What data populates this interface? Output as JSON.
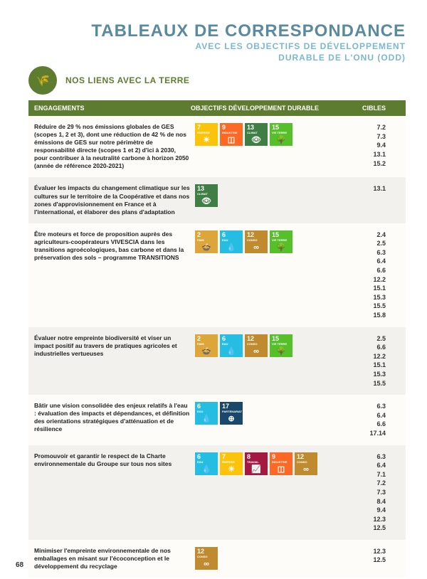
{
  "header": {
    "title": "TABLEAUX DE CORRESPONDANCE",
    "subtitle_l1": "AVEC LES OBJECTIFS DE DÉVELOPPEMENT",
    "subtitle_l2": "DURABLE DE L'ONU (ODD)"
  },
  "section": {
    "title": "NOS LIENS AVEC LA TERRE",
    "badge_glyph": "🌾"
  },
  "columns": {
    "c1": "ENGAGEMENTS",
    "c2": "OBJECTIFS DÉVELOPPEMENT DURABLE",
    "c3": "CIBLES"
  },
  "sdg_palette": {
    "2": {
      "color": "#dda63a",
      "label": "FAIM",
      "icon": "🍲"
    },
    "6": {
      "color": "#26bde2",
      "label": "EAU",
      "icon": "💧"
    },
    "7": {
      "color": "#fcc30b",
      "label": "ÉNERGIE",
      "icon": "☀"
    },
    "8": {
      "color": "#a21942",
      "label": "TRAVAIL",
      "icon": "📈"
    },
    "9": {
      "color": "#fd6925",
      "label": "INDUSTRIE",
      "icon": "◫"
    },
    "12": {
      "color": "#bf8b2e",
      "label": "CONSO",
      "icon": "∞"
    },
    "13": {
      "color": "#3f7e44",
      "label": "CLIMAT",
      "icon": "👁"
    },
    "15": {
      "color": "#56c02b",
      "label": "VIE TERRE",
      "icon": "🌳"
    },
    "17": {
      "color": "#19486a",
      "label": "PARTENARIAT",
      "icon": "⊕"
    }
  },
  "rows": [
    {
      "engagement": "Réduire de 29 % nos émissions globales de GES (scopes 1, 2 et 3), dont une réduction de 42 % de nos émissions de GES sur notre périmètre de responsabilité directe (scopes 1 et 2) d'ici à 2030, pour contribuer à la neutralité carbone à horizon 2050 (année de référence 2020-2021)",
      "sdgs": [
        7,
        9,
        13,
        15
      ],
      "cibles": [
        "7.2",
        "7.3",
        "9.4",
        "13.1",
        "15.2"
      ]
    },
    {
      "engagement": "Évaluer les impacts du changement climatique sur les cultures sur le territoire de la Coopérative et dans nos zones d'approvisionnement en France et à l'international, et élaborer des plans d'adaptation",
      "sdgs": [
        13
      ],
      "cibles": [
        "13.1"
      ]
    },
    {
      "engagement": "Être moteurs et force de proposition auprès des agriculteurs-coopérateurs VIVESCIA dans les transitions agroécologiques, bas carbone et dans la préservation des sols – programme TRANSITIONS",
      "sdgs": [
        2,
        6,
        12,
        15
      ],
      "cibles": [
        "2.4",
        "2.5",
        "6.3",
        "6.4",
        "6.6",
        "12.2",
        "15.1",
        "15.3",
        "15.5",
        "15.8"
      ]
    },
    {
      "engagement": "Évaluer notre empreinte biodiversité et viser un impact positif au travers de pratiques agricoles et industrielles vertueuses",
      "sdgs": [
        2,
        6,
        12,
        15
      ],
      "cibles": [
        "2.5",
        "6.6",
        "12.2",
        "15.1",
        "15.3",
        "15.5"
      ]
    },
    {
      "engagement": "Bâtir une vision consolidée des enjeux relatifs à l'eau : évaluation des impacts et dépendances, et définition des orientations stratégiques d'atténuation et de résilience",
      "sdgs": [
        6,
        17
      ],
      "cibles": [
        "6.3",
        "6.4",
        "6.6",
        "17.14"
      ]
    },
    {
      "engagement": "Promouvoir et garantir le respect de la Charte environnementale du Groupe sur tous nos sites",
      "sdgs": [
        6,
        7,
        8,
        9,
        12
      ],
      "cibles": [
        "6.3",
        "6.4",
        "7.1",
        "7.2",
        "7.3",
        "8.4",
        "9.4",
        "12.3",
        "12.5"
      ]
    },
    {
      "engagement": "Minimiser l'empreinte environnementale de nos emballages en misant sur l'écoconception et le développement du recyclage",
      "sdgs": [
        12
      ],
      "cibles": [
        "12.3",
        "12.5"
      ]
    }
  ],
  "page_number": "68"
}
